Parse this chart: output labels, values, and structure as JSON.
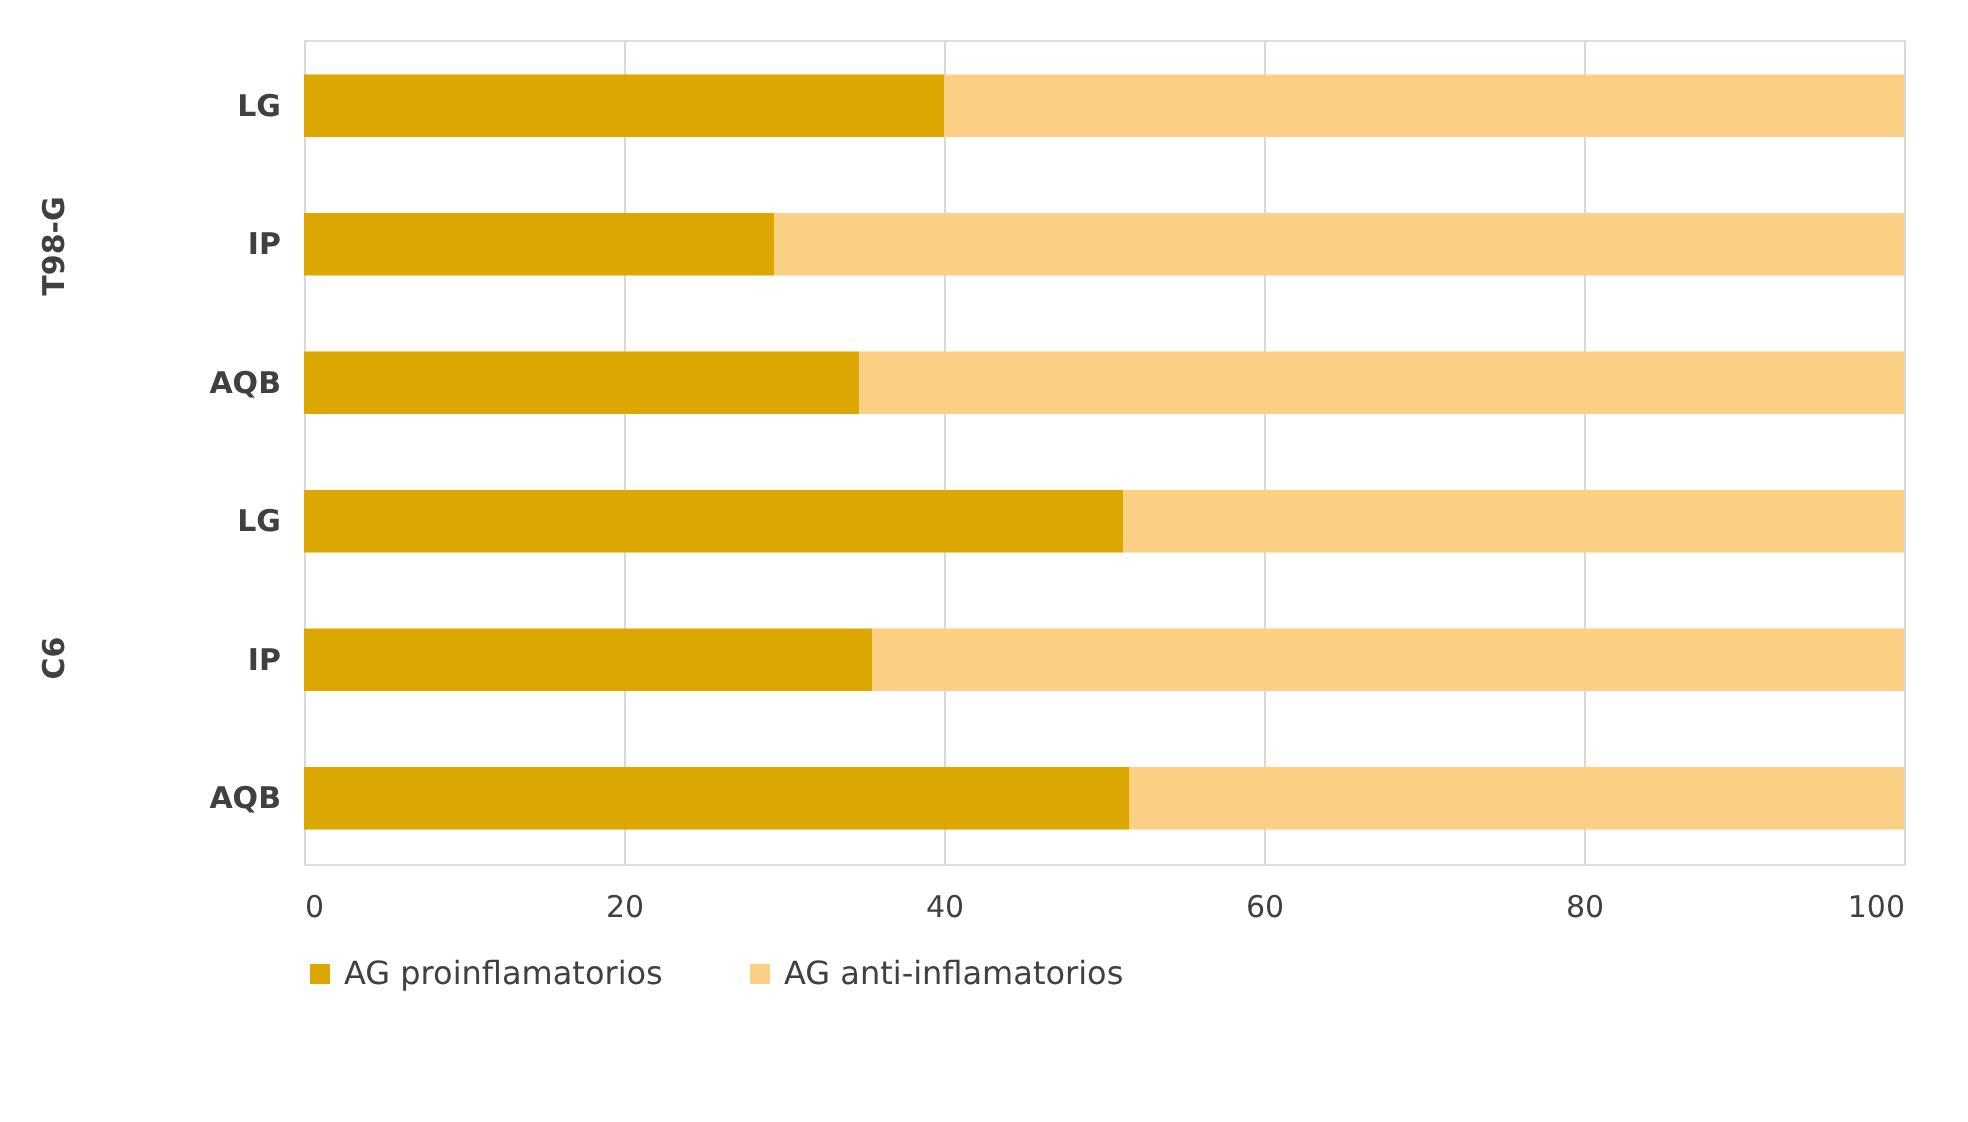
{
  "chart_data": {
    "type": "bar",
    "orientation": "horizontal",
    "stacked": true,
    "categories": [
      "LG",
      "IP",
      "AQB",
      "LG",
      "IP",
      "AQB"
    ],
    "series": [
      {
        "name": "AG proinflamatorios",
        "color": "#dca800",
        "values": [
          40,
          29.4,
          34.7,
          51.2,
          35.5,
          51.6
        ]
      },
      {
        "name": "AG anti-inflamatorios",
        "color": "#fbcf84",
        "values": [
          60,
          70.6,
          65.3,
          48.8,
          64.5,
          48.4
        ]
      }
    ],
    "xlim": [
      0,
      100
    ],
    "xticks": [
      0,
      20,
      40,
      60,
      80,
      100
    ],
    "annotations": [
      "T98-G",
      "C6"
    ],
    "grid": "x",
    "legend": "bottom"
  }
}
